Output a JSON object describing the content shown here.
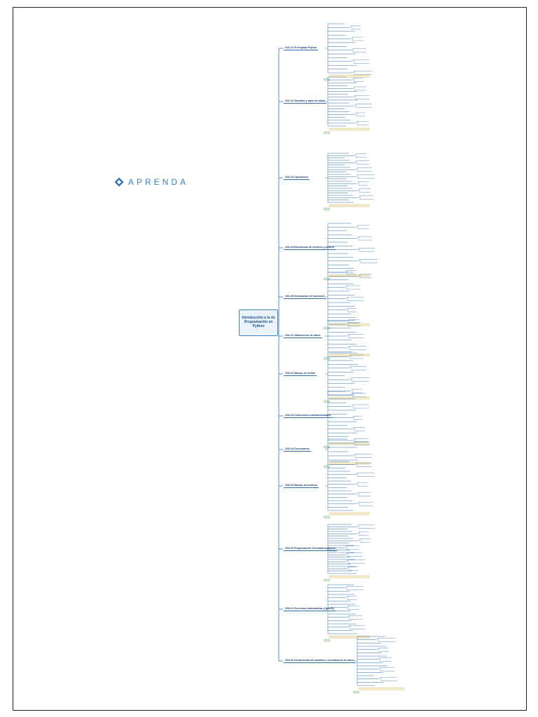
{
  "logo": {
    "text": "APRENDA",
    "color": "#3a7fc1",
    "icon": "diamond-logo-icon"
  },
  "root": {
    "title": "Introducción a la de Programación en Python"
  },
  "branches": [
    {
      "label": "G01-01 El lenguaje Python",
      "leaves": 14
    },
    {
      "label": "G01-02 Variables y tipos de datos",
      "leaves": 18
    },
    {
      "label": "G01-03 Operadores",
      "leaves": 22
    },
    {
      "label": "G01-04 Estructuras de decisión y control",
      "leaves": 14
    },
    {
      "label": "G01-05 Declaración de funciones",
      "leaves": 14
    },
    {
      "label": "G02-01 Validaciones de datos",
      "leaves": 9
    },
    {
      "label": "G02-02 Manejo de fechas",
      "leaves": 12
    },
    {
      "label": "G02-03 Colecciones unidimensionales",
      "leaves": 14
    },
    {
      "label": "G02-04 Diccionarios",
      "leaves": 6
    },
    {
      "label": "G02-05 Manejo de archivos",
      "leaves": 16
    },
    {
      "label": "G03-01 Programación Orientada a objetos",
      "leaves": 22
    },
    {
      "label": "G03-01 Funciones matemáticas y NumPy",
      "leaves": 16
    },
    {
      "label": "G03-02 Herramientas de analítica y visualización de datos",
      "leaves": 16
    }
  ],
  "colors": {
    "line": "#2f6db0",
    "node_fill": "#eaf3fb",
    "note_fill": "#f6edc8",
    "tag_fill": "#d6ecd6"
  }
}
